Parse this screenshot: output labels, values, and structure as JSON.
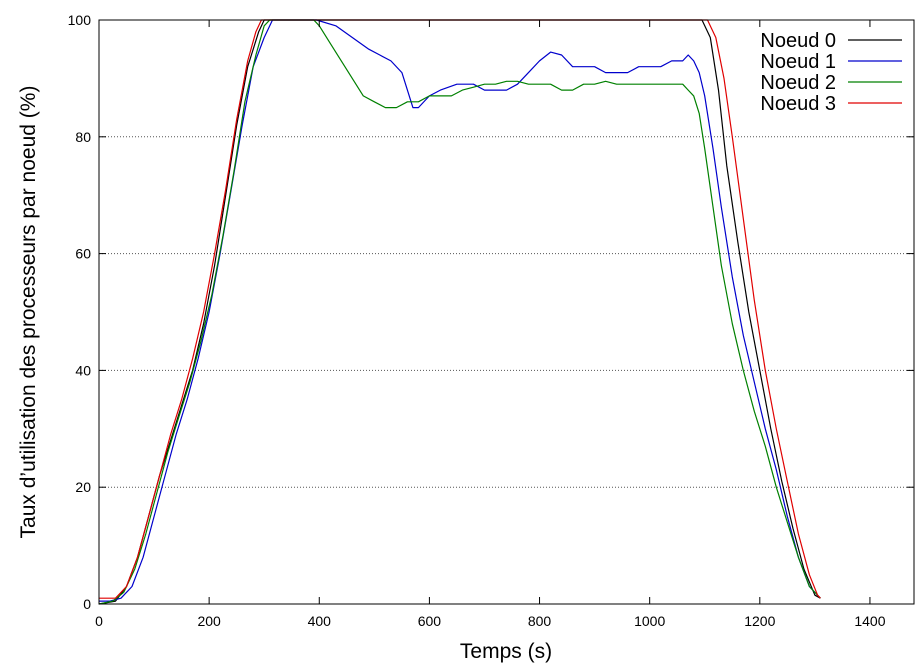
{
  "chart_data": {
    "type": "line",
    "xlabel": "Temps (s)",
    "ylabel": "Taux d’utilisation des processeurs par noeud (%)",
    "xlim": [
      0,
      1480
    ],
    "ylim": [
      0,
      100
    ],
    "xticks": [
      0,
      200,
      400,
      600,
      800,
      1000,
      1200,
      1400
    ],
    "yticks": [
      0,
      20,
      40,
      60,
      80,
      100
    ],
    "grid": "horizontal dotted",
    "legend_position": "top-right",
    "series": [
      {
        "name": "Noeud 0",
        "color": "#000000",
        "points": [
          [
            0,
            0
          ],
          [
            30,
            0.5
          ],
          [
            50,
            3
          ],
          [
            70,
            8
          ],
          [
            90,
            15
          ],
          [
            110,
            22
          ],
          [
            130,
            28
          ],
          [
            150,
            34
          ],
          [
            170,
            40
          ],
          [
            190,
            48
          ],
          [
            210,
            58
          ],
          [
            230,
            70
          ],
          [
            250,
            82
          ],
          [
            270,
            92
          ],
          [
            290,
            98
          ],
          [
            300,
            100
          ],
          [
            1095,
            100
          ],
          [
            1110,
            97
          ],
          [
            1125,
            88
          ],
          [
            1140,
            75
          ],
          [
            1160,
            62
          ],
          [
            1180,
            50
          ],
          [
            1200,
            40
          ],
          [
            1220,
            30
          ],
          [
            1240,
            21
          ],
          [
            1260,
            13
          ],
          [
            1280,
            6
          ],
          [
            1300,
            1.5
          ],
          [
            1310,
            1
          ]
        ]
      },
      {
        "name": "Noeud 1",
        "color": "#0000cc",
        "points": [
          [
            0,
            0.5
          ],
          [
            20,
            0.5
          ],
          [
            40,
            1
          ],
          [
            60,
            3
          ],
          [
            80,
            8
          ],
          [
            100,
            15
          ],
          [
            120,
            22
          ],
          [
            140,
            29
          ],
          [
            160,
            35
          ],
          [
            180,
            42
          ],
          [
            200,
            50
          ],
          [
            220,
            60
          ],
          [
            240,
            71
          ],
          [
            260,
            82
          ],
          [
            280,
            92
          ],
          [
            300,
            97
          ],
          [
            315,
            100
          ],
          [
            395,
            100
          ],
          [
            430,
            99
          ],
          [
            460,
            97
          ],
          [
            490,
            95
          ],
          [
            510,
            94
          ],
          [
            530,
            93
          ],
          [
            550,
            91
          ],
          [
            560,
            88
          ],
          [
            570,
            85
          ],
          [
            580,
            85
          ],
          [
            600,
            87
          ],
          [
            620,
            88
          ],
          [
            650,
            89
          ],
          [
            680,
            89
          ],
          [
            700,
            88
          ],
          [
            720,
            88
          ],
          [
            740,
            88
          ],
          [
            760,
            89
          ],
          [
            780,
            91
          ],
          [
            800,
            93
          ],
          [
            820,
            94.5
          ],
          [
            840,
            94
          ],
          [
            860,
            92
          ],
          [
            880,
            92
          ],
          [
            900,
            92
          ],
          [
            920,
            91
          ],
          [
            940,
            91
          ],
          [
            960,
            91
          ],
          [
            980,
            92
          ],
          [
            1000,
            92
          ],
          [
            1020,
            92
          ],
          [
            1040,
            93
          ],
          [
            1060,
            93
          ],
          [
            1070,
            94
          ],
          [
            1080,
            93
          ],
          [
            1090,
            91
          ],
          [
            1100,
            87
          ],
          [
            1115,
            78
          ],
          [
            1130,
            68
          ],
          [
            1150,
            56
          ],
          [
            1170,
            46
          ],
          [
            1190,
            38
          ],
          [
            1210,
            30
          ],
          [
            1230,
            23
          ],
          [
            1250,
            15
          ],
          [
            1270,
            8
          ],
          [
            1290,
            3
          ],
          [
            1310,
            1
          ]
        ]
      },
      {
        "name": "Noeud 2",
        "color": "#008000",
        "points": [
          [
            0,
            0
          ],
          [
            25,
            0.5
          ],
          [
            45,
            2
          ],
          [
            65,
            6
          ],
          [
            85,
            12
          ],
          [
            105,
            19
          ],
          [
            125,
            26
          ],
          [
            145,
            32
          ],
          [
            165,
            38
          ],
          [
            185,
            45
          ],
          [
            205,
            53
          ],
          [
            225,
            63
          ],
          [
            245,
            74
          ],
          [
            265,
            86
          ],
          [
            285,
            94
          ],
          [
            300,
            99
          ],
          [
            310,
            100
          ],
          [
            390,
            100
          ],
          [
            400,
            99
          ],
          [
            420,
            96
          ],
          [
            440,
            93
          ],
          [
            460,
            90
          ],
          [
            480,
            87
          ],
          [
            500,
            86
          ],
          [
            520,
            85
          ],
          [
            540,
            85
          ],
          [
            560,
            86
          ],
          [
            580,
            86
          ],
          [
            600,
            87
          ],
          [
            620,
            87
          ],
          [
            640,
            87
          ],
          [
            660,
            88
          ],
          [
            680,
            88.5
          ],
          [
            700,
            89
          ],
          [
            720,
            89
          ],
          [
            740,
            89.5
          ],
          [
            760,
            89.5
          ],
          [
            780,
            89
          ],
          [
            800,
            89
          ],
          [
            820,
            89
          ],
          [
            840,
            88
          ],
          [
            860,
            88
          ],
          [
            880,
            89
          ],
          [
            900,
            89
          ],
          [
            920,
            89.5
          ],
          [
            940,
            89
          ],
          [
            960,
            89
          ],
          [
            980,
            89
          ],
          [
            1000,
            89
          ],
          [
            1020,
            89
          ],
          [
            1040,
            89
          ],
          [
            1060,
            89
          ],
          [
            1070,
            88
          ],
          [
            1080,
            87
          ],
          [
            1090,
            84
          ],
          [
            1100,
            78
          ],
          [
            1115,
            68
          ],
          [
            1130,
            58
          ],
          [
            1150,
            48
          ],
          [
            1170,
            40
          ],
          [
            1190,
            33
          ],
          [
            1210,
            27
          ],
          [
            1230,
            20
          ],
          [
            1250,
            14
          ],
          [
            1270,
            8
          ],
          [
            1290,
            3
          ],
          [
            1310,
            1
          ]
        ]
      },
      {
        "name": "Noeud 3",
        "color": "#e00000",
        "points": [
          [
            0,
            1
          ],
          [
            30,
            1
          ],
          [
            50,
            3
          ],
          [
            70,
            8
          ],
          [
            90,
            15
          ],
          [
            110,
            22
          ],
          [
            130,
            29
          ],
          [
            150,
            35
          ],
          [
            170,
            42
          ],
          [
            190,
            50
          ],
          [
            210,
            60
          ],
          [
            230,
            71
          ],
          [
            250,
            83
          ],
          [
            270,
            93
          ],
          [
            285,
            98
          ],
          [
            295,
            100
          ],
          [
            1105,
            100
          ],
          [
            1120,
            97
          ],
          [
            1135,
            90
          ],
          [
            1150,
            80
          ],
          [
            1170,
            66
          ],
          [
            1190,
            52
          ],
          [
            1210,
            40
          ],
          [
            1230,
            30
          ],
          [
            1250,
            21
          ],
          [
            1270,
            12
          ],
          [
            1290,
            5
          ],
          [
            1305,
            1.5
          ],
          [
            1310,
            1
          ]
        ]
      }
    ]
  }
}
